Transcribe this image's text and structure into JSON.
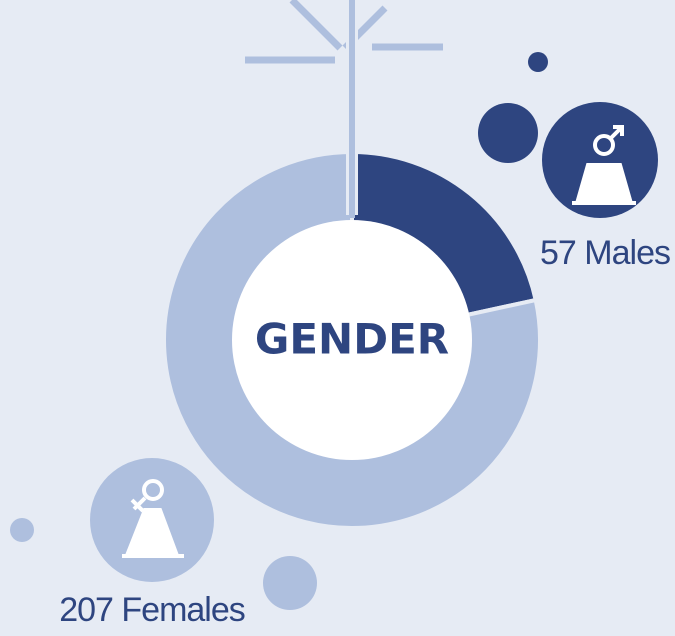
{
  "chart_data": {
    "type": "pie",
    "title": "GENDER",
    "categories": [
      "Males",
      "Females"
    ],
    "values": [
      57,
      207
    ],
    "value_labels": [
      "57 Males",
      "207 Females"
    ],
    "colors": [
      "#2e4580",
      "#aebfde"
    ]
  }
}
